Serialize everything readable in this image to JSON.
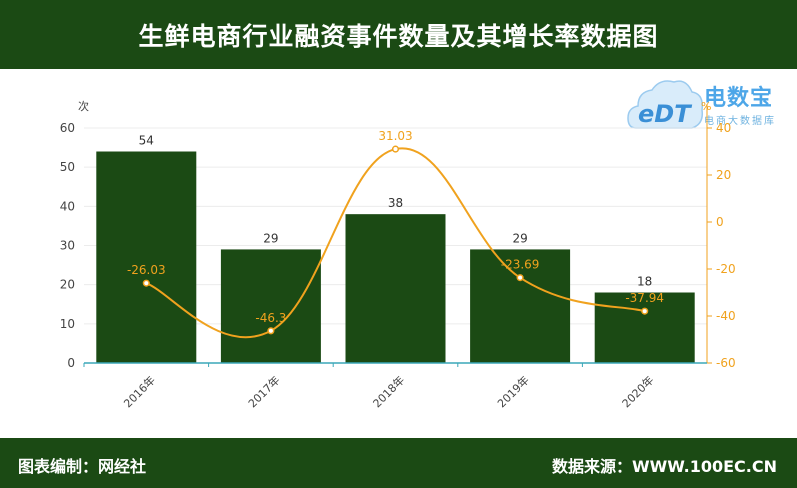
{
  "title": "生鲜电商行业融资事件数量及其增长率数据图",
  "footer": {
    "left": "图表编制：网经社",
    "right": "数据来源：WWW.100EC.CN"
  },
  "logo": {
    "main": "电数宝",
    "sub": "电商大数据库",
    "mark": "eDT"
  },
  "colors": {
    "bar": "#1b4a14",
    "line": "#f0a21e",
    "header": "#1b4a14",
    "axis_right": "#f0a21e"
  },
  "chart_data": {
    "type": "bar",
    "categories": [
      "2016年",
      "2017年",
      "2018年",
      "2019年",
      "2020年"
    ],
    "series": [
      {
        "values": [
          54,
          29,
          38,
          29,
          18
        ],
        "chart": "bar",
        "axis": "left"
      },
      {
        "values": [
          -26.03,
          -46.3,
          31.03,
          -23.69,
          -37.94
        ],
        "chart": "line",
        "axis": "right"
      }
    ],
    "y_left": {
      "unit": "次",
      "ylim": [
        0,
        60
      ],
      "ticks": [
        "0",
        "10",
        "20",
        "30",
        "40",
        "50",
        "60"
      ]
    },
    "y_right": {
      "unit": "%",
      "ylim": [
        -60,
        40
      ],
      "ticks": [
        "-60",
        "-40",
        "-20",
        "0",
        "20",
        "40"
      ]
    },
    "bar_labels": [
      "54",
      "29",
      "38",
      "29",
      "18"
    ],
    "line_labels": [
      "-26.03",
      "-46.3",
      "31.03",
      "-23.69",
      "-37.94"
    ],
    "grid": true,
    "legend": "none"
  }
}
